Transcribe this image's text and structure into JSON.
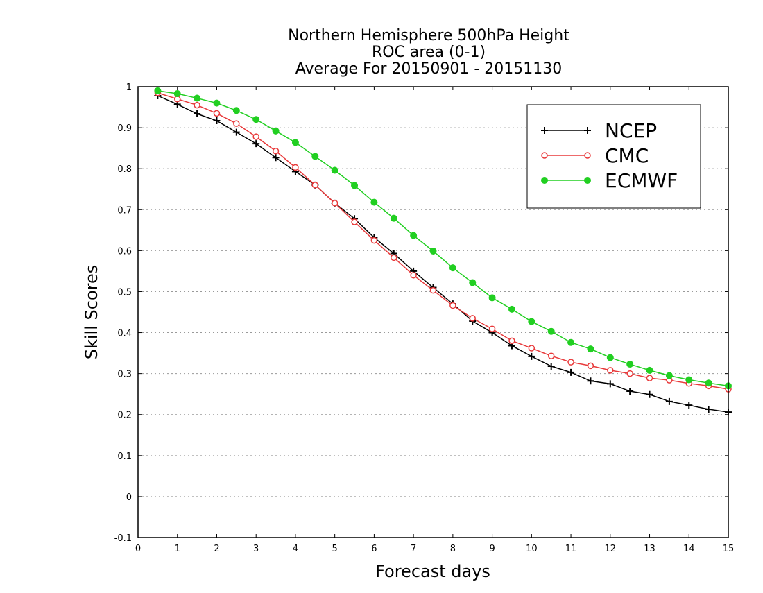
{
  "chart_data": {
    "type": "line",
    "title": [
      "Northern Hemisphere 500hPa Height",
      "ROC area (0-1)",
      "Average For 20150901 - 20151130"
    ],
    "xlabel": "Forecast days",
    "ylabel": "Skill Scores",
    "xlim": [
      0,
      15
    ],
    "ylim": [
      -0.1,
      1
    ],
    "xticks": [
      "0",
      "1",
      "2",
      "3",
      "4",
      "5",
      "6",
      "7",
      "8",
      "9",
      "10",
      "11",
      "12",
      "13",
      "14",
      "15"
    ],
    "yticks": [
      "1",
      "0.9",
      "0.8",
      "0.7",
      "0.6",
      "0.5",
      "0.4",
      "0.3",
      "0.2",
      "0.1",
      "0",
      "-0.1"
    ],
    "grid": "horizontal dotted",
    "legend_position": "top-right",
    "x": [
      0.5,
      1,
      1.5,
      2,
      2.5,
      3,
      3.5,
      4,
      4.5,
      5,
      5.5,
      6,
      6.5,
      7,
      7.5,
      8,
      8.5,
      9,
      9.5,
      10,
      10.5,
      11,
      11.5,
      12,
      12.5,
      13,
      13.5,
      14,
      14.5,
      15
    ],
    "series": [
      {
        "name": "NCEP",
        "color": "#000000",
        "marker": "plus",
        "values": [
          0.978,
          0.957,
          0.934,
          0.917,
          0.889,
          0.861,
          0.827,
          0.793,
          0.76,
          0.716,
          0.678,
          0.632,
          0.593,
          0.55,
          0.51,
          0.47,
          0.428,
          0.4,
          0.368,
          0.342,
          0.318,
          0.303,
          0.282,
          0.275,
          0.257,
          0.249,
          0.232,
          0.223,
          0.213,
          0.206
        ]
      },
      {
        "name": "CMC",
        "color": "#e8393a",
        "marker": "open-circle",
        "values": [
          0.985,
          0.97,
          0.955,
          0.935,
          0.91,
          0.878,
          0.843,
          0.803,
          0.76,
          0.716,
          0.67,
          0.625,
          0.583,
          0.54,
          0.503,
          0.466,
          0.435,
          0.409,
          0.38,
          0.362,
          0.343,
          0.328,
          0.319,
          0.308,
          0.3,
          0.289,
          0.284,
          0.276,
          0.27,
          0.262
        ]
      },
      {
        "name": "ECMWF",
        "color": "#21cf21",
        "marker": "filled-circle",
        "values": [
          0.99,
          0.983,
          0.972,
          0.96,
          0.942,
          0.92,
          0.892,
          0.864,
          0.83,
          0.796,
          0.759,
          0.718,
          0.679,
          0.637,
          0.599,
          0.558,
          0.522,
          0.485,
          0.457,
          0.427,
          0.403,
          0.376,
          0.36,
          0.339,
          0.323,
          0.308,
          0.295,
          0.285,
          0.277,
          0.27
        ]
      }
    ]
  }
}
